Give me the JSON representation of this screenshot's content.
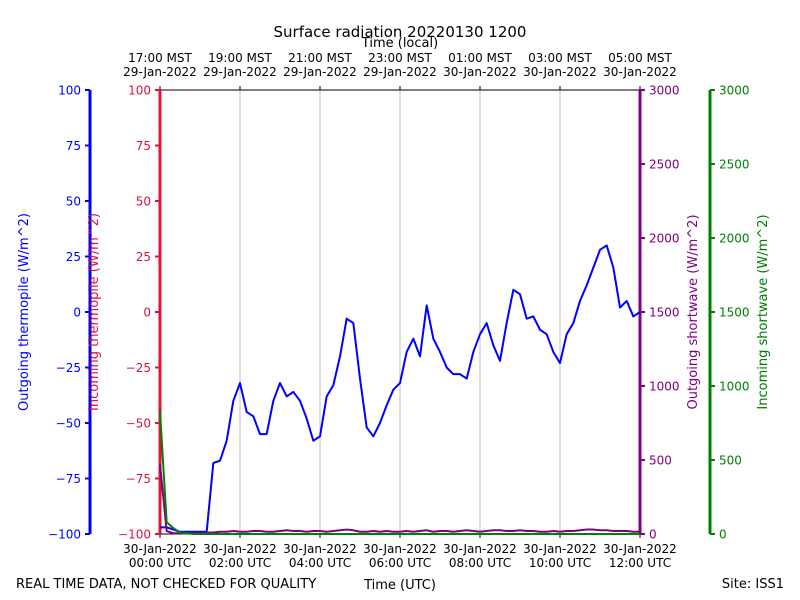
{
  "chart_data": {
    "type": "line",
    "title": "Surface radiation 20220130 1200",
    "xlabel": "Time (UTC)",
    "x2label": "Time (local)",
    "footer_left": "REAL TIME DATA, NOT CHECKED FOR QUALITY",
    "footer_right": "Site: ISS1",
    "grid": true,
    "xlim": [
      "2022-01-30 00:00",
      "2022-01-30 12:00"
    ],
    "xticks": [
      {
        "value": "2022-01-30 00:00",
        "label": "30-Jan-2022\n00:00 UTC"
      },
      {
        "value": "2022-01-30 02:00",
        "label": "30-Jan-2022\n02:00 UTC"
      },
      {
        "value": "2022-01-30 04:00",
        "label": "30-Jan-2022\n04:00 UTC"
      },
      {
        "value": "2022-01-30 06:00",
        "label": "30-Jan-2022\n06:00 UTC"
      },
      {
        "value": "2022-01-30 08:00",
        "label": "30-Jan-2022\n08:00 UTC"
      },
      {
        "value": "2022-01-30 10:00",
        "label": "30-Jan-2022\n10:00 UTC"
      },
      {
        "value": "2022-01-30 12:00",
        "label": "30-Jan-2022\n12:00 UTC"
      }
    ],
    "x2ticks": [
      {
        "value": "2022-01-30 00:00",
        "label": "17:00 MST\n29-Jan-2022"
      },
      {
        "value": "2022-01-30 02:00",
        "label": "19:00 MST\n29-Jan-2022"
      },
      {
        "value": "2022-01-30 04:00",
        "label": "21:00 MST\n29-Jan-2022"
      },
      {
        "value": "2022-01-30 06:00",
        "label": "23:00 MST\n29-Jan-2022"
      },
      {
        "value": "2022-01-30 08:00",
        "label": "01:00 MST\n30-Jan-2022"
      },
      {
        "value": "2022-01-30 10:00",
        "label": "03:00 MST\n30-Jan-2022"
      },
      {
        "value": "2022-01-30 12:00",
        "label": "05:00 MST\n30-Jan-2022"
      }
    ],
    "axes": [
      {
        "label": "Outgoing thermopile (W/m^2)",
        "color": "#0000ff",
        "side": "left",
        "lim": [
          -100,
          100
        ],
        "ticks": [
          {
            "value": -100,
            "label": "−100"
          },
          {
            "value": -75,
            "label": "−75"
          },
          {
            "value": -50,
            "label": "−50"
          },
          {
            "value": -25,
            "label": "−25"
          },
          0,
          25,
          50,
          75,
          100
        ]
      },
      {
        "label": "Incoming thermopile (W/m^2)",
        "color": "#dc143c",
        "side": "left",
        "lim": [
          -100,
          100
        ],
        "ticks": [
          {
            "value": -100,
            "label": "−100"
          },
          {
            "value": -75,
            "label": "−75"
          },
          {
            "value": -50,
            "label": "−50"
          },
          {
            "value": -25,
            "label": "−25"
          },
          0,
          25,
          50,
          75,
          100
        ]
      },
      {
        "label": "Outgoing shortwave (W/m^2)",
        "color": "#800080",
        "side": "right",
        "lim": [
          0,
          3000
        ],
        "ticks": [
          0,
          500,
          1000,
          1500,
          2000,
          2500,
          3000
        ]
      },
      {
        "label": "Incoming shortwave (W/m^2)",
        "color": "#008000",
        "side": "right",
        "lim": [
          0,
          3000
        ],
        "ticks": [
          0,
          500,
          1000,
          1500,
          2000,
          2500,
          3000
        ]
      }
    ],
    "x": [
      "2022-01-30 00:00",
      "2022-01-30 00:10",
      "2022-01-30 00:20",
      "2022-01-30 00:30",
      "2022-01-30 00:40",
      "2022-01-30 00:50",
      "2022-01-30 01:00",
      "2022-01-30 01:10",
      "2022-01-30 01:20",
      "2022-01-30 01:30",
      "2022-01-30 01:40",
      "2022-01-30 01:50",
      "2022-01-30 02:00",
      "2022-01-30 02:10",
      "2022-01-30 02:20",
      "2022-01-30 02:30",
      "2022-01-30 02:40",
      "2022-01-30 02:50",
      "2022-01-30 03:00",
      "2022-01-30 03:10",
      "2022-01-30 03:20",
      "2022-01-30 03:30",
      "2022-01-30 03:40",
      "2022-01-30 03:50",
      "2022-01-30 04:00",
      "2022-01-30 04:10",
      "2022-01-30 04:20",
      "2022-01-30 04:30",
      "2022-01-30 04:40",
      "2022-01-30 04:50",
      "2022-01-30 05:00",
      "2022-01-30 05:10",
      "2022-01-30 05:20",
      "2022-01-30 05:30",
      "2022-01-30 05:40",
      "2022-01-30 05:50",
      "2022-01-30 06:00",
      "2022-01-30 06:10",
      "2022-01-30 06:20",
      "2022-01-30 06:30",
      "2022-01-30 06:40",
      "2022-01-30 06:50",
      "2022-01-30 07:00",
      "2022-01-30 07:10",
      "2022-01-30 07:20",
      "2022-01-30 07:30",
      "2022-01-30 07:40",
      "2022-01-30 07:50",
      "2022-01-30 08:00",
      "2022-01-30 08:10",
      "2022-01-30 08:20",
      "2022-01-30 08:30",
      "2022-01-30 08:40",
      "2022-01-30 08:50",
      "2022-01-30 09:00",
      "2022-01-30 09:10",
      "2022-01-30 09:20",
      "2022-01-30 09:30",
      "2022-01-30 09:40",
      "2022-01-30 09:50",
      "2022-01-30 10:00",
      "2022-01-30 10:10",
      "2022-01-30 10:20",
      "2022-01-30 10:30",
      "2022-01-30 10:40",
      "2022-01-30 10:50",
      "2022-01-30 11:00",
      "2022-01-30 11:10",
      "2022-01-30 11:20",
      "2022-01-30 11:30",
      "2022-01-30 11:40",
      "2022-01-30 11:50",
      "2022-01-30 12:00"
    ],
    "series": [
      {
        "name": "Outgoing thermopile",
        "color": "#0000ff",
        "axis": 0,
        "values": [
          -97,
          -97,
          -98,
          -99,
          -99,
          -99,
          -99,
          -99,
          -68,
          -67,
          -58,
          -40,
          -32,
          -45,
          -47,
          -55,
          -55,
          -40,
          -32,
          -38,
          -36,
          -40,
          -48,
          -58,
          -56,
          -38,
          -33,
          -20,
          -3,
          -5,
          -30,
          -52,
          -56,
          -50,
          -42,
          -35,
          -32,
          -18,
          -12,
          -20,
          3,
          -12,
          -18,
          -25,
          -28,
          -28,
          -30,
          -18,
          -10,
          -5,
          -15,
          -22,
          -5,
          10,
          8,
          -3,
          -2,
          -8,
          -10,
          -18,
          -23,
          -10,
          -5,
          5,
          12,
          20,
          28,
          30,
          20,
          2,
          5,
          -2,
          0
        ]
      },
      {
        "name": "Outgoing shortwave",
        "color": "#800080",
        "axis": 2,
        "values": [
          470,
          20,
          5,
          5,
          3,
          5,
          5,
          10,
          10,
          15,
          15,
          20,
          15,
          15,
          20,
          20,
          15,
          15,
          20,
          25,
          20,
          20,
          15,
          20,
          20,
          15,
          20,
          25,
          30,
          25,
          15,
          15,
          20,
          15,
          20,
          15,
          15,
          20,
          15,
          20,
          25,
          15,
          20,
          20,
          15,
          20,
          25,
          20,
          15,
          20,
          25,
          25,
          20,
          20,
          25,
          20,
          20,
          15,
          15,
          20,
          15,
          20,
          20,
          25,
          30,
          30,
          25,
          25,
          20,
          20,
          20,
          15,
          15
        ]
      },
      {
        "name": "Incoming shortwave",
        "color": "#008000",
        "axis": 3,
        "values": [
          830,
          80,
          40,
          10,
          5,
          0,
          0,
          0,
          0,
          0,
          0,
          0,
          0,
          0,
          0,
          0,
          0,
          0,
          0,
          0,
          0,
          0,
          0,
          0,
          0,
          0,
          0,
          0,
          0,
          0,
          0,
          0,
          0,
          0,
          0,
          0,
          0,
          0,
          0,
          0,
          0,
          0,
          0,
          0,
          0,
          0,
          0,
          0,
          0,
          0,
          0,
          0,
          0,
          0,
          0,
          0,
          0,
          0,
          0,
          0,
          0,
          0,
          0,
          0,
          0,
          0,
          0,
          0,
          0,
          0,
          0,
          0,
          0
        ]
      }
    ]
  }
}
